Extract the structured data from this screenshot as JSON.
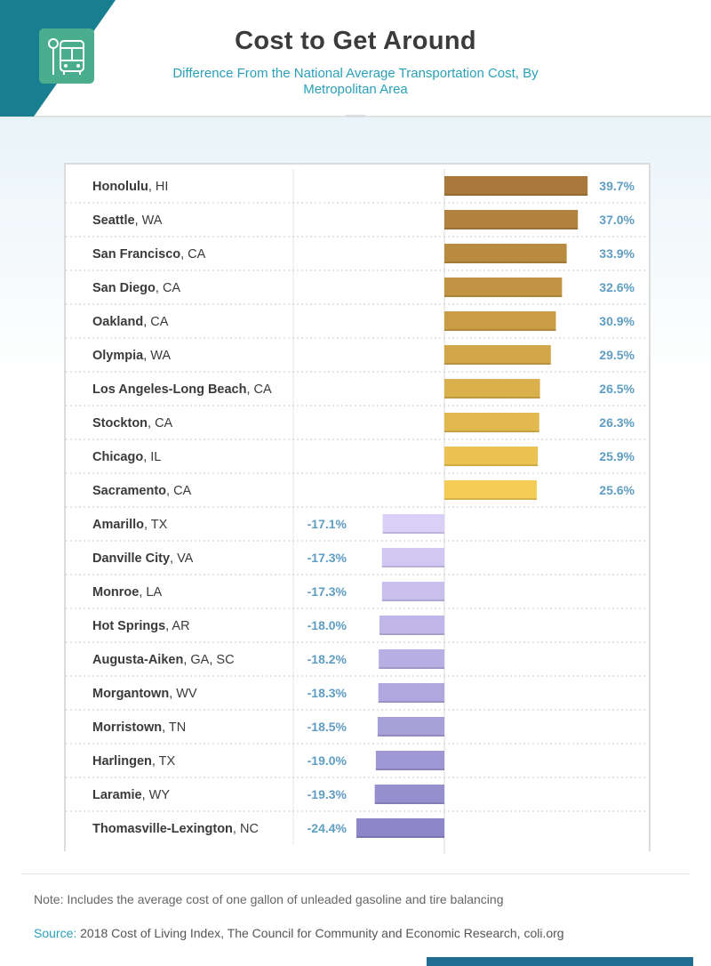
{
  "header": {
    "title": "Cost to Get Around",
    "subtitle": "Difference From the National Average Transportation Cost, By Metropolitan Area"
  },
  "colors": {
    "header_teal": "#177f90",
    "icon_green": "#49ad8e",
    "accent_blue": "#2aa0b8",
    "label_blue": "#5f9dc2",
    "positive_bar_gradient": [
      "#a8793a",
      "#f3cb55"
    ],
    "negative_bar_gradient": [
      "#d9cff7",
      "#8d87c9"
    ]
  },
  "chart_data": {
    "type": "bar",
    "orientation": "horizontal",
    "title": "Cost to Get Around",
    "subtitle": "Difference From the National Average Transportation Cost, By Metropolitan Area",
    "xlabel": "",
    "ylabel": "",
    "xlim": [
      -30,
      45
    ],
    "grid": true,
    "categories": [
      {
        "city": "Honolulu",
        "region": "HI"
      },
      {
        "city": "Seattle",
        "region": "WA"
      },
      {
        "city": "San Francisco",
        "region": "CA"
      },
      {
        "city": "San Diego",
        "region": "CA"
      },
      {
        "city": "Oakland",
        "region": "CA"
      },
      {
        "city": "Olympia",
        "region": "WA"
      },
      {
        "city": "Los Angeles-Long Beach",
        "region": "CA"
      },
      {
        "city": "Stockton",
        "region": "CA"
      },
      {
        "city": "Chicago",
        "region": "IL"
      },
      {
        "city": "Sacramento",
        "region": "CA"
      },
      {
        "city": "Amarillo",
        "region": "TX"
      },
      {
        "city": "Danville City",
        "region": "VA"
      },
      {
        "city": "Monroe",
        "region": "LA"
      },
      {
        "city": "Hot Springs",
        "region": "AR"
      },
      {
        "city": "Augusta-Aiken",
        "region": "GA, SC"
      },
      {
        "city": "Morgantown",
        "region": "WV"
      },
      {
        "city": "Morristown",
        "region": "TN"
      },
      {
        "city": "Harlingen",
        "region": "TX"
      },
      {
        "city": "Laramie",
        "region": "WY"
      },
      {
        "city": "Thomasville-Lexington",
        "region": "NC"
      }
    ],
    "values": [
      39.7,
      37.0,
      33.9,
      32.6,
      30.9,
      29.5,
      26.5,
      26.3,
      25.9,
      25.6,
      -17.1,
      -17.3,
      -17.3,
      -18.0,
      -18.2,
      -18.3,
      -18.5,
      -19.0,
      -19.3,
      -24.4
    ],
    "labels": [
      "39.7%",
      "37.0%",
      "33.9%",
      "32.6%",
      "30.9%",
      "29.5%",
      "26.5%",
      "26.3%",
      "25.9%",
      "25.6%",
      "-17.1%",
      "-17.3%",
      "-17.3%",
      "-18.0%",
      "-18.2%",
      "-18.3%",
      "-18.5%",
      "-19.0%",
      "-19.3%",
      "-24.4%"
    ]
  },
  "footer": {
    "note": "Note: Includes the average cost of one gallon of unleaded gasoline and tire balancing",
    "source_label": "Source:",
    "source_text": " 2018 Cost of Living Index, The Council for Community and Economic Research, coli.org"
  }
}
